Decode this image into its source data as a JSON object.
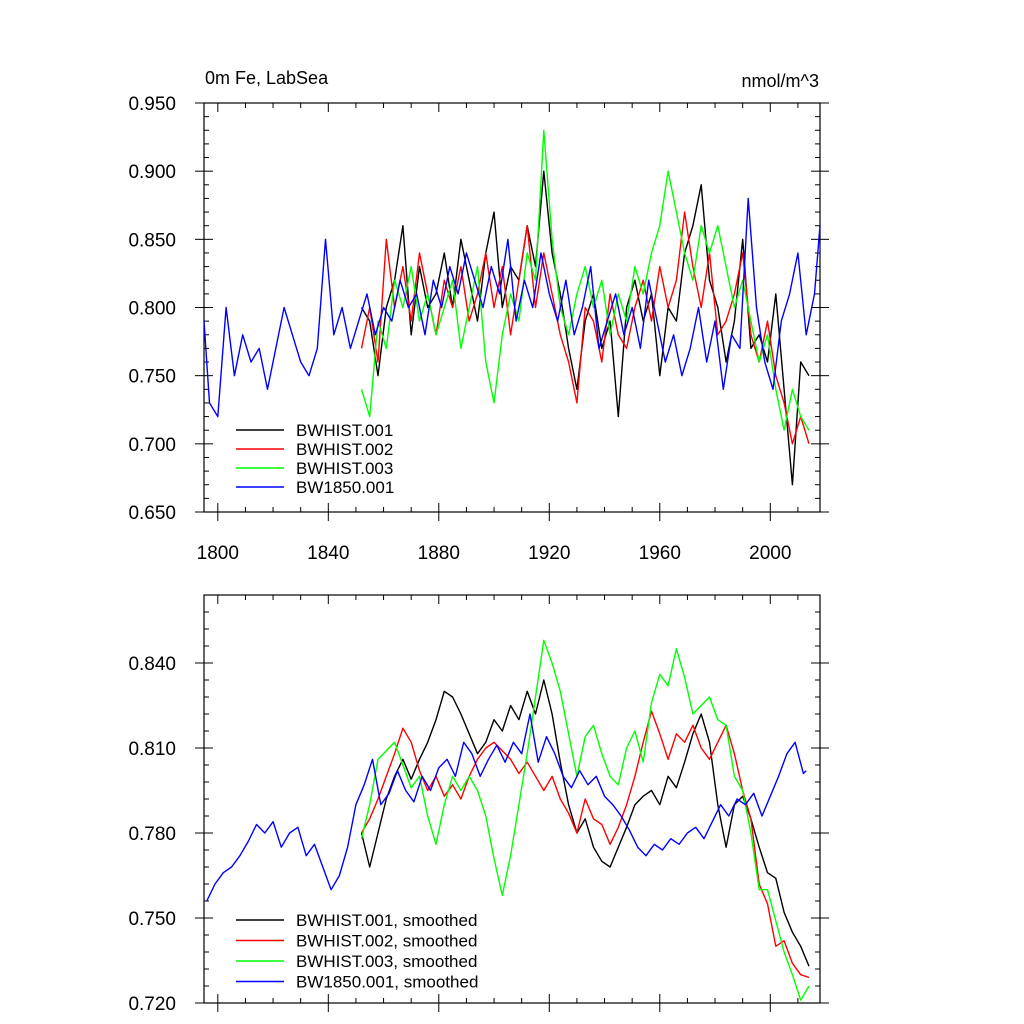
{
  "figure": {
    "title_left": "0m Fe, LabSea",
    "title_right": "nmol/m^3"
  },
  "chart_data": [
    {
      "type": "line",
      "title": "0m Fe, LabSea",
      "units": "nmol/m^3",
      "xlabel": "",
      "ylabel": "",
      "xlim": [
        1795,
        2018
      ],
      "ylim": [
        0.65,
        0.95
      ],
      "xticks": [
        1800,
        1840,
        1880,
        1920,
        1960,
        2000
      ],
      "yticks": [
        0.65,
        0.7,
        0.75,
        0.8,
        0.85,
        0.9,
        0.95
      ],
      "ytick_labels": [
        "0.650",
        "0.700",
        "0.750",
        "0.800",
        "0.850",
        "0.900",
        "0.950"
      ],
      "legend_position": "bottom-left",
      "series": [
        {
          "name": "BWHIST.001",
          "color": "#000000",
          "x": [
            1852,
            1855,
            1858,
            1861,
            1864,
            1867,
            1870,
            1873,
            1876,
            1879,
            1882,
            1885,
            1888,
            1891,
            1894,
            1897,
            1900,
            1903,
            1906,
            1909,
            1912,
            1915,
            1918,
            1921,
            1924,
            1927,
            1930,
            1933,
            1936,
            1939,
            1942,
            1945,
            1948,
            1951,
            1954,
            1957,
            1960,
            1963,
            1966,
            1969,
            1972,
            1975,
            1978,
            1981,
            1984,
            1987,
            1990,
            1993,
            1996,
            1999,
            2002,
            2005,
            2008,
            2011,
            2014
          ],
          "values": [
            0.8,
            0.79,
            0.75,
            0.8,
            0.82,
            0.86,
            0.78,
            0.83,
            0.8,
            0.81,
            0.84,
            0.8,
            0.85,
            0.82,
            0.79,
            0.84,
            0.87,
            0.8,
            0.83,
            0.82,
            0.86,
            0.83,
            0.9,
            0.84,
            0.81,
            0.77,
            0.74,
            0.79,
            0.81,
            0.77,
            0.79,
            0.72,
            0.8,
            0.82,
            0.79,
            0.81,
            0.75,
            0.8,
            0.79,
            0.84,
            0.86,
            0.89,
            0.82,
            0.8,
            0.76,
            0.79,
            0.85,
            0.77,
            0.78,
            0.76,
            0.81,
            0.74,
            0.67,
            0.76,
            0.75
          ]
        },
        {
          "name": "BWHIST.002",
          "color": "#ff0000",
          "x": [
            1852,
            1855,
            1858,
            1861,
            1864,
            1867,
            1870,
            1873,
            1876,
            1879,
            1882,
            1885,
            1888,
            1891,
            1894,
            1897,
            1900,
            1903,
            1906,
            1909,
            1912,
            1915,
            1918,
            1921,
            1924,
            1927,
            1930,
            1933,
            1936,
            1939,
            1942,
            1945,
            1948,
            1951,
            1954,
            1957,
            1960,
            1963,
            1966,
            1969,
            1972,
            1975,
            1978,
            1981,
            1984,
            1987,
            1990,
            1993,
            1996,
            1999,
            2002,
            2005,
            2008,
            2011,
            2014
          ],
          "values": [
            0.77,
            0.8,
            0.76,
            0.85,
            0.8,
            0.83,
            0.79,
            0.84,
            0.81,
            0.78,
            0.82,
            0.8,
            0.83,
            0.79,
            0.81,
            0.84,
            0.8,
            0.83,
            0.78,
            0.82,
            0.86,
            0.8,
            0.84,
            0.81,
            0.78,
            0.76,
            0.73,
            0.8,
            0.79,
            0.76,
            0.81,
            0.78,
            0.77,
            0.8,
            0.82,
            0.79,
            0.83,
            0.8,
            0.82,
            0.87,
            0.83,
            0.8,
            0.84,
            0.78,
            0.79,
            0.81,
            0.84,
            0.78,
            0.76,
            0.79,
            0.75,
            0.73,
            0.7,
            0.72,
            0.7
          ]
        },
        {
          "name": "BWHIST.003",
          "color": "#00ff00",
          "x": [
            1852,
            1855,
            1858,
            1861,
            1864,
            1867,
            1870,
            1873,
            1876,
            1879,
            1882,
            1885,
            1888,
            1891,
            1894,
            1897,
            1900,
            1903,
            1906,
            1909,
            1912,
            1915,
            1918,
            1921,
            1924,
            1927,
            1930,
            1933,
            1936,
            1939,
            1942,
            1945,
            1948,
            1951,
            1954,
            1957,
            1960,
            1963,
            1966,
            1969,
            1972,
            1975,
            1978,
            1981,
            1984,
            1987,
            1990,
            1993,
            1996,
            1999,
            2002,
            2005,
            2008,
            2011,
            2014
          ],
          "values": [
            0.74,
            0.72,
            0.79,
            0.77,
            0.82,
            0.8,
            0.83,
            0.79,
            0.81,
            0.78,
            0.8,
            0.82,
            0.77,
            0.8,
            0.83,
            0.76,
            0.73,
            0.78,
            0.81,
            0.79,
            0.84,
            0.82,
            0.93,
            0.85,
            0.8,
            0.78,
            0.81,
            0.83,
            0.8,
            0.82,
            0.78,
            0.81,
            0.79,
            0.83,
            0.81,
            0.84,
            0.86,
            0.9,
            0.87,
            0.84,
            0.82,
            0.86,
            0.84,
            0.86,
            0.83,
            0.8,
            0.82,
            0.79,
            0.76,
            0.78,
            0.74,
            0.71,
            0.74,
            0.72,
            0.71
          ]
        },
        {
          "name": "BW1850.001",
          "color": "#0000ff",
          "x": [
            1795,
            1797,
            1800,
            1803,
            1806,
            1809,
            1812,
            1815,
            1818,
            1821,
            1824,
            1827,
            1830,
            1833,
            1836,
            1839,
            1842,
            1845,
            1848,
            1851,
            1854,
            1857,
            1860,
            1863,
            1866,
            1869,
            1872,
            1875,
            1878,
            1881,
            1884,
            1887,
            1890,
            1893,
            1896,
            1899,
            1902,
            1905,
            1908,
            1911,
            1914,
            1917,
            1920,
            1923,
            1926,
            1929,
            1932,
            1935,
            1938,
            1941,
            1944,
            1947,
            1950,
            1953,
            1956,
            1959,
            1962,
            1965,
            1968,
            1971,
            1974,
            1977,
            1980,
            1983,
            1986,
            1989,
            1992,
            1995,
            1998,
            2001,
            2004,
            2007,
            2010,
            2013,
            2016,
            2018
          ],
          "values": [
            0.79,
            0.73,
            0.72,
            0.8,
            0.75,
            0.78,
            0.76,
            0.77,
            0.74,
            0.77,
            0.8,
            0.78,
            0.76,
            0.75,
            0.77,
            0.85,
            0.78,
            0.8,
            0.77,
            0.79,
            0.81,
            0.78,
            0.8,
            0.79,
            0.82,
            0.8,
            0.81,
            0.78,
            0.82,
            0.8,
            0.83,
            0.81,
            0.84,
            0.82,
            0.8,
            0.83,
            0.81,
            0.85,
            0.79,
            0.82,
            0.8,
            0.84,
            0.81,
            0.79,
            0.82,
            0.78,
            0.8,
            0.83,
            0.77,
            0.79,
            0.81,
            0.78,
            0.8,
            0.77,
            0.82,
            0.79,
            0.76,
            0.78,
            0.75,
            0.77,
            0.8,
            0.76,
            0.79,
            0.74,
            0.78,
            0.77,
            0.88,
            0.8,
            0.76,
            0.74,
            0.79,
            0.81,
            0.84,
            0.78,
            0.81,
            0.86
          ]
        }
      ]
    },
    {
      "type": "line",
      "title": "",
      "xlabel": "",
      "ylabel": "",
      "xlim": [
        1795,
        2018
      ],
      "ylim": [
        0.72,
        0.864
      ],
      "xticks": [
        1800,
        1840,
        1880,
        1920,
        1960,
        2000
      ],
      "yticks": [
        0.72,
        0.75,
        0.78,
        0.81,
        0.84
      ],
      "ytick_labels": [
        "0.720",
        "0.750",
        "0.780",
        "0.810",
        "0.840"
      ],
      "legend_position": "bottom-left",
      "series": [
        {
          "name": "BWHIST.001, smoothed",
          "color": "#000000",
          "x": [
            1852,
            1855,
            1858,
            1861,
            1864,
            1867,
            1870,
            1873,
            1876,
            1879,
            1882,
            1885,
            1888,
            1891,
            1894,
            1897,
            1900,
            1903,
            1906,
            1909,
            1912,
            1915,
            1918,
            1921,
            1924,
            1927,
            1930,
            1933,
            1936,
            1939,
            1942,
            1945,
            1948,
            1951,
            1954,
            1957,
            1960,
            1963,
            1966,
            1969,
            1972,
            1975,
            1978,
            1981,
            1984,
            1987,
            1990,
            1993,
            1996,
            1999,
            2002,
            2005,
            2008,
            2011,
            2014
          ],
          "values": [
            0.78,
            0.768,
            0.78,
            0.792,
            0.8,
            0.806,
            0.799,
            0.806,
            0.812,
            0.82,
            0.83,
            0.828,
            0.822,
            0.815,
            0.808,
            0.812,
            0.82,
            0.816,
            0.825,
            0.82,
            0.83,
            0.822,
            0.834,
            0.822,
            0.805,
            0.79,
            0.78,
            0.785,
            0.775,
            0.77,
            0.768,
            0.775,
            0.782,
            0.79,
            0.793,
            0.795,
            0.79,
            0.8,
            0.796,
            0.805,
            0.815,
            0.822,
            0.812,
            0.79,
            0.775,
            0.79,
            0.793,
            0.785,
            0.775,
            0.766,
            0.764,
            0.752,
            0.745,
            0.74,
            0.733
          ]
        },
        {
          "name": "BWHIST.002, smoothed",
          "color": "#ff0000",
          "x": [
            1852,
            1855,
            1858,
            1861,
            1864,
            1867,
            1870,
            1873,
            1876,
            1879,
            1882,
            1885,
            1888,
            1891,
            1894,
            1897,
            1900,
            1903,
            1906,
            1909,
            1912,
            1915,
            1918,
            1921,
            1924,
            1927,
            1930,
            1933,
            1936,
            1939,
            1942,
            1945,
            1948,
            1951,
            1954,
            1957,
            1960,
            1963,
            1966,
            1969,
            1972,
            1975,
            1978,
            1981,
            1984,
            1987,
            1990,
            1993,
            1996,
            1999,
            2002,
            2005,
            2008,
            2011,
            2014
          ],
          "values": [
            0.78,
            0.785,
            0.792,
            0.8,
            0.808,
            0.817,
            0.812,
            0.802,
            0.795,
            0.8,
            0.793,
            0.797,
            0.792,
            0.8,
            0.806,
            0.81,
            0.812,
            0.809,
            0.806,
            0.801,
            0.805,
            0.8,
            0.795,
            0.8,
            0.792,
            0.787,
            0.78,
            0.792,
            0.785,
            0.783,
            0.776,
            0.782,
            0.79,
            0.8,
            0.812,
            0.823,
            0.815,
            0.806,
            0.815,
            0.812,
            0.818,
            0.81,
            0.806,
            0.812,
            0.818,
            0.808,
            0.795,
            0.785,
            0.762,
            0.755,
            0.74,
            0.742,
            0.734,
            0.73,
            0.729
          ]
        },
        {
          "name": "BWHIST.003, smoothed",
          "color": "#00ff00",
          "x": [
            1852,
            1855,
            1858,
            1861,
            1864,
            1867,
            1870,
            1873,
            1876,
            1879,
            1882,
            1885,
            1888,
            1891,
            1894,
            1897,
            1900,
            1903,
            1906,
            1909,
            1912,
            1915,
            1918,
            1921,
            1924,
            1927,
            1930,
            1933,
            1936,
            1939,
            1942,
            1945,
            1948,
            1951,
            1954,
            1957,
            1960,
            1963,
            1966,
            1969,
            1972,
            1975,
            1978,
            1981,
            1984,
            1987,
            1990,
            1993,
            1996,
            1999,
            2002,
            2005,
            2008,
            2011,
            2014
          ],
          "values": [
            0.778,
            0.79,
            0.806,
            0.809,
            0.812,
            0.804,
            0.796,
            0.8,
            0.786,
            0.776,
            0.79,
            0.8,
            0.795,
            0.8,
            0.795,
            0.786,
            0.771,
            0.758,
            0.772,
            0.79,
            0.808,
            0.828,
            0.848,
            0.84,
            0.83,
            0.815,
            0.8,
            0.814,
            0.818,
            0.808,
            0.8,
            0.797,
            0.81,
            0.816,
            0.805,
            0.826,
            0.836,
            0.832,
            0.845,
            0.835,
            0.822,
            0.825,
            0.828,
            0.82,
            0.818,
            0.8,
            0.795,
            0.78,
            0.76,
            0.76,
            0.749,
            0.738,
            0.73,
            0.721,
            0.726
          ]
        },
        {
          "name": "BW1850.001, smoothed",
          "color": "#0000ff",
          "x": [
            1796,
            1799,
            1802,
            1805,
            1808,
            1811,
            1814,
            1817,
            1820,
            1823,
            1826,
            1829,
            1832,
            1835,
            1838,
            1841,
            1844,
            1847,
            1850,
            1853,
            1856,
            1859,
            1862,
            1865,
            1868,
            1871,
            1874,
            1877,
            1880,
            1883,
            1886,
            1889,
            1892,
            1895,
            1898,
            1901,
            1904,
            1907,
            1910,
            1913,
            1916,
            1919,
            1922,
            1925,
            1928,
            1931,
            1934,
            1937,
            1940,
            1943,
            1946,
            1949,
            1952,
            1955,
            1958,
            1961,
            1964,
            1967,
            1970,
            1973,
            1976,
            1979,
            1982,
            1985,
            1988,
            1991,
            1994,
            1997,
            2000,
            2003,
            2006,
            2009,
            2012,
            2013
          ],
          "values": [
            0.756,
            0.762,
            0.766,
            0.768,
            0.772,
            0.777,
            0.783,
            0.78,
            0.784,
            0.775,
            0.78,
            0.782,
            0.772,
            0.776,
            0.768,
            0.76,
            0.765,
            0.775,
            0.79,
            0.797,
            0.806,
            0.79,
            0.794,
            0.802,
            0.795,
            0.791,
            0.8,
            0.795,
            0.803,
            0.806,
            0.8,
            0.812,
            0.808,
            0.8,
            0.806,
            0.811,
            0.805,
            0.812,
            0.808,
            0.822,
            0.805,
            0.814,
            0.808,
            0.8,
            0.796,
            0.802,
            0.797,
            0.8,
            0.793,
            0.79,
            0.786,
            0.781,
            0.775,
            0.772,
            0.776,
            0.774,
            0.778,
            0.776,
            0.78,
            0.782,
            0.778,
            0.784,
            0.79,
            0.786,
            0.792,
            0.79,
            0.794,
            0.786,
            0.793,
            0.8,
            0.808,
            0.812,
            0.801,
            0.802
          ]
        }
      ]
    }
  ]
}
